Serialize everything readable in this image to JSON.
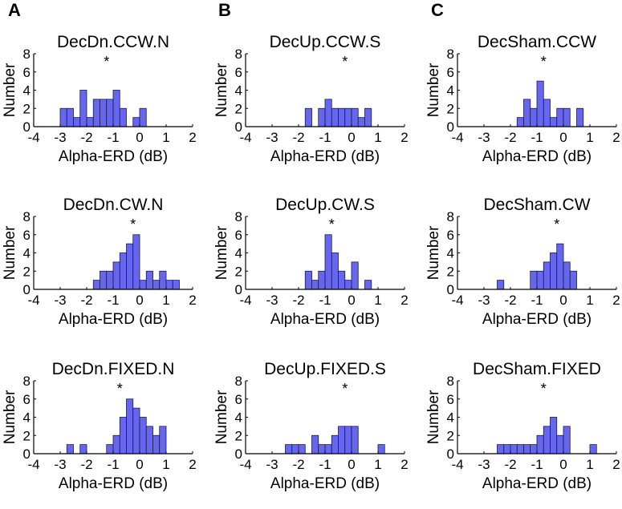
{
  "panel_labels": [
    "A",
    "B",
    "C"
  ],
  "colors": {
    "bar_fill": "#6666ee",
    "bar_stroke": "#1a1a4d",
    "axis": "#000000"
  },
  "chart_data": [
    {
      "type": "bar",
      "title": "DecDn.CCW.N",
      "xlabel": "Alpha-ERD (dB)",
      "ylabel": "Number",
      "xlim": [
        -4,
        2
      ],
      "ylim": [
        0,
        8
      ],
      "xticks": [
        -4,
        -3,
        -2,
        -1,
        0,
        1,
        2
      ],
      "yticks": [
        0,
        2,
        4,
        6,
        8
      ],
      "bin_width": 0.25,
      "star": "*",
      "star_x": -1.25,
      "bin_centers": [
        -2.875,
        -2.625,
        -2.375,
        -2.125,
        -1.875,
        -1.625,
        -1.375,
        -1.125,
        -0.875,
        -0.625,
        -0.125,
        0.125,
        0.375
      ],
      "values": [
        2,
        2,
        1,
        4,
        1,
        3,
        3,
        3,
        4,
        2,
        1,
        2,
        0
      ]
    },
    {
      "type": "bar",
      "title": "DecUp.CCW.S",
      "xlabel": "Alpha-ERD (dB)",
      "ylabel": "Number",
      "xlim": [
        -4,
        2
      ],
      "ylim": [
        0,
        8
      ],
      "xticks": [
        -4,
        -3,
        -2,
        -1,
        0,
        1,
        2
      ],
      "yticks": [
        0,
        2,
        4,
        6,
        8
      ],
      "bin_width": 0.25,
      "star": "*",
      "star_x": -0.25,
      "bin_centers": [
        -1.625,
        -1.125,
        -0.875,
        -0.625,
        -0.375,
        -0.125,
        0.125,
        0.375,
        0.625
      ],
      "values": [
        2,
        2,
        3,
        2,
        2,
        2,
        2,
        1,
        2
      ]
    },
    {
      "type": "bar",
      "title": "DecSham.CCW",
      "xlabel": "Alpha-ERD (dB)",
      "ylabel": "Number",
      "xlim": [
        -4,
        2
      ],
      "ylim": [
        0,
        8
      ],
      "xticks": [
        -4,
        -3,
        -2,
        -1,
        0,
        1,
        2
      ],
      "yticks": [
        0,
        2,
        4,
        6,
        8
      ],
      "bin_width": 0.25,
      "star": "*",
      "star_x": -0.75,
      "bin_centers": [
        -1.625,
        -1.375,
        -1.125,
        -0.875,
        -0.625,
        -0.375,
        -0.125,
        0.125,
        0.625
      ],
      "values": [
        1,
        3,
        2,
        5,
        3,
        1,
        2,
        2,
        2
      ]
    },
    {
      "type": "bar",
      "title": "DecDn.CW.N",
      "xlabel": "Alpha-ERD (dB)",
      "ylabel": "Number",
      "xlim": [
        -4,
        2
      ],
      "ylim": [
        0,
        8
      ],
      "xticks": [
        -4,
        -3,
        -2,
        -1,
        0,
        1,
        2
      ],
      "yticks": [
        0,
        2,
        4,
        6,
        8
      ],
      "bin_width": 0.25,
      "star": "*",
      "star_x": -0.25,
      "bin_centers": [
        -1.625,
        -1.375,
        -1.125,
        -0.875,
        -0.625,
        -0.375,
        -0.125,
        0.125,
        0.375,
        0.625,
        0.875,
        1.125,
        1.375
      ],
      "values": [
        1,
        2,
        2,
        3,
        4,
        5,
        6,
        1,
        2,
        1,
        2,
        1,
        1
      ]
    },
    {
      "type": "bar",
      "title": "DecUp.CW.S",
      "xlabel": "Alpha-ERD (dB)",
      "ylabel": "Number",
      "xlim": [
        -4,
        2
      ],
      "ylim": [
        0,
        8
      ],
      "xticks": [
        -4,
        -3,
        -2,
        -1,
        0,
        1,
        2
      ],
      "yticks": [
        0,
        2,
        4,
        6,
        8
      ],
      "bin_width": 0.25,
      "star": "*",
      "star_x": -0.75,
      "bin_centers": [
        -1.625,
        -1.375,
        -1.125,
        -0.875,
        -0.625,
        -0.375,
        -0.125,
        0.125,
        0.375,
        0.625
      ],
      "values": [
        2,
        1,
        2,
        6,
        4,
        2,
        1,
        3,
        0,
        1
      ]
    },
    {
      "type": "bar",
      "title": "DecSham.CW",
      "xlabel": "Alpha-ERD (dB)",
      "ylabel": "Number",
      "xlim": [
        -4,
        2
      ],
      "ylim": [
        0,
        8
      ],
      "xticks": [
        -4,
        -3,
        -2,
        -1,
        0,
        1,
        2
      ],
      "yticks": [
        0,
        2,
        4,
        6,
        8
      ],
      "bin_width": 0.25,
      "star": "*",
      "star_x": -0.25,
      "bin_centers": [
        -2.375,
        -1.125,
        -0.875,
        -0.625,
        -0.375,
        -0.125,
        0.125,
        0.375
      ],
      "values": [
        1,
        2,
        2,
        3,
        4,
        5,
        3,
        2
      ]
    },
    {
      "type": "bar",
      "title": "DecDn.FIXED.N",
      "xlabel": "Alpha-ERD (dB)",
      "ylabel": "Number",
      "xlim": [
        -4,
        2
      ],
      "ylim": [
        0,
        8
      ],
      "xticks": [
        -4,
        -3,
        -2,
        -1,
        0,
        1,
        2
      ],
      "yticks": [
        0,
        2,
        4,
        6,
        8
      ],
      "bin_width": 0.25,
      "star": "*",
      "star_x": -0.75,
      "bin_centers": [
        -2.625,
        -2.125,
        -1.125,
        -0.875,
        -0.625,
        -0.375,
        -0.125,
        0.125,
        0.375,
        0.625,
        0.875
      ],
      "values": [
        1,
        1,
        1,
        2,
        4,
        6,
        5,
        4,
        3,
        2,
        3
      ]
    },
    {
      "type": "bar",
      "title": "DecUp.FIXED.S",
      "xlabel": "Alpha-ERD (dB)",
      "ylabel": "Number",
      "xlim": [
        -4,
        2
      ],
      "ylim": [
        0,
        8
      ],
      "xticks": [
        -4,
        -3,
        -2,
        -1,
        0,
        1,
        2
      ],
      "yticks": [
        0,
        2,
        4,
        6,
        8
      ],
      "bin_width": 0.25,
      "star": "*",
      "star_x": -0.25,
      "bin_centers": [
        -2.375,
        -2.125,
        -1.875,
        -1.375,
        -1.125,
        -0.875,
        -0.625,
        -0.375,
        -0.125,
        0.125,
        1.125
      ],
      "values": [
        1,
        1,
        1,
        2,
        1,
        1,
        2,
        3,
        3,
        3,
        1
      ]
    },
    {
      "type": "bar",
      "title": "DecSham.FIXED",
      "xlabel": "Alpha-ERD (dB)",
      "ylabel": "Number",
      "xlim": [
        -4,
        2
      ],
      "ylim": [
        0,
        8
      ],
      "xticks": [
        -4,
        -3,
        -2,
        -1,
        0,
        1,
        2
      ],
      "yticks": [
        0,
        2,
        4,
        6,
        8
      ],
      "bin_width": 0.25,
      "star": "*",
      "star_x": -0.75,
      "bin_centers": [
        -2.375,
        -2.125,
        -1.875,
        -1.625,
        -1.375,
        -1.125,
        -0.875,
        -0.625,
        -0.375,
        -0.125,
        0.125,
        1.125
      ],
      "values": [
        1,
        1,
        1,
        1,
        1,
        1,
        2,
        3,
        4,
        2,
        3,
        1
      ]
    }
  ]
}
